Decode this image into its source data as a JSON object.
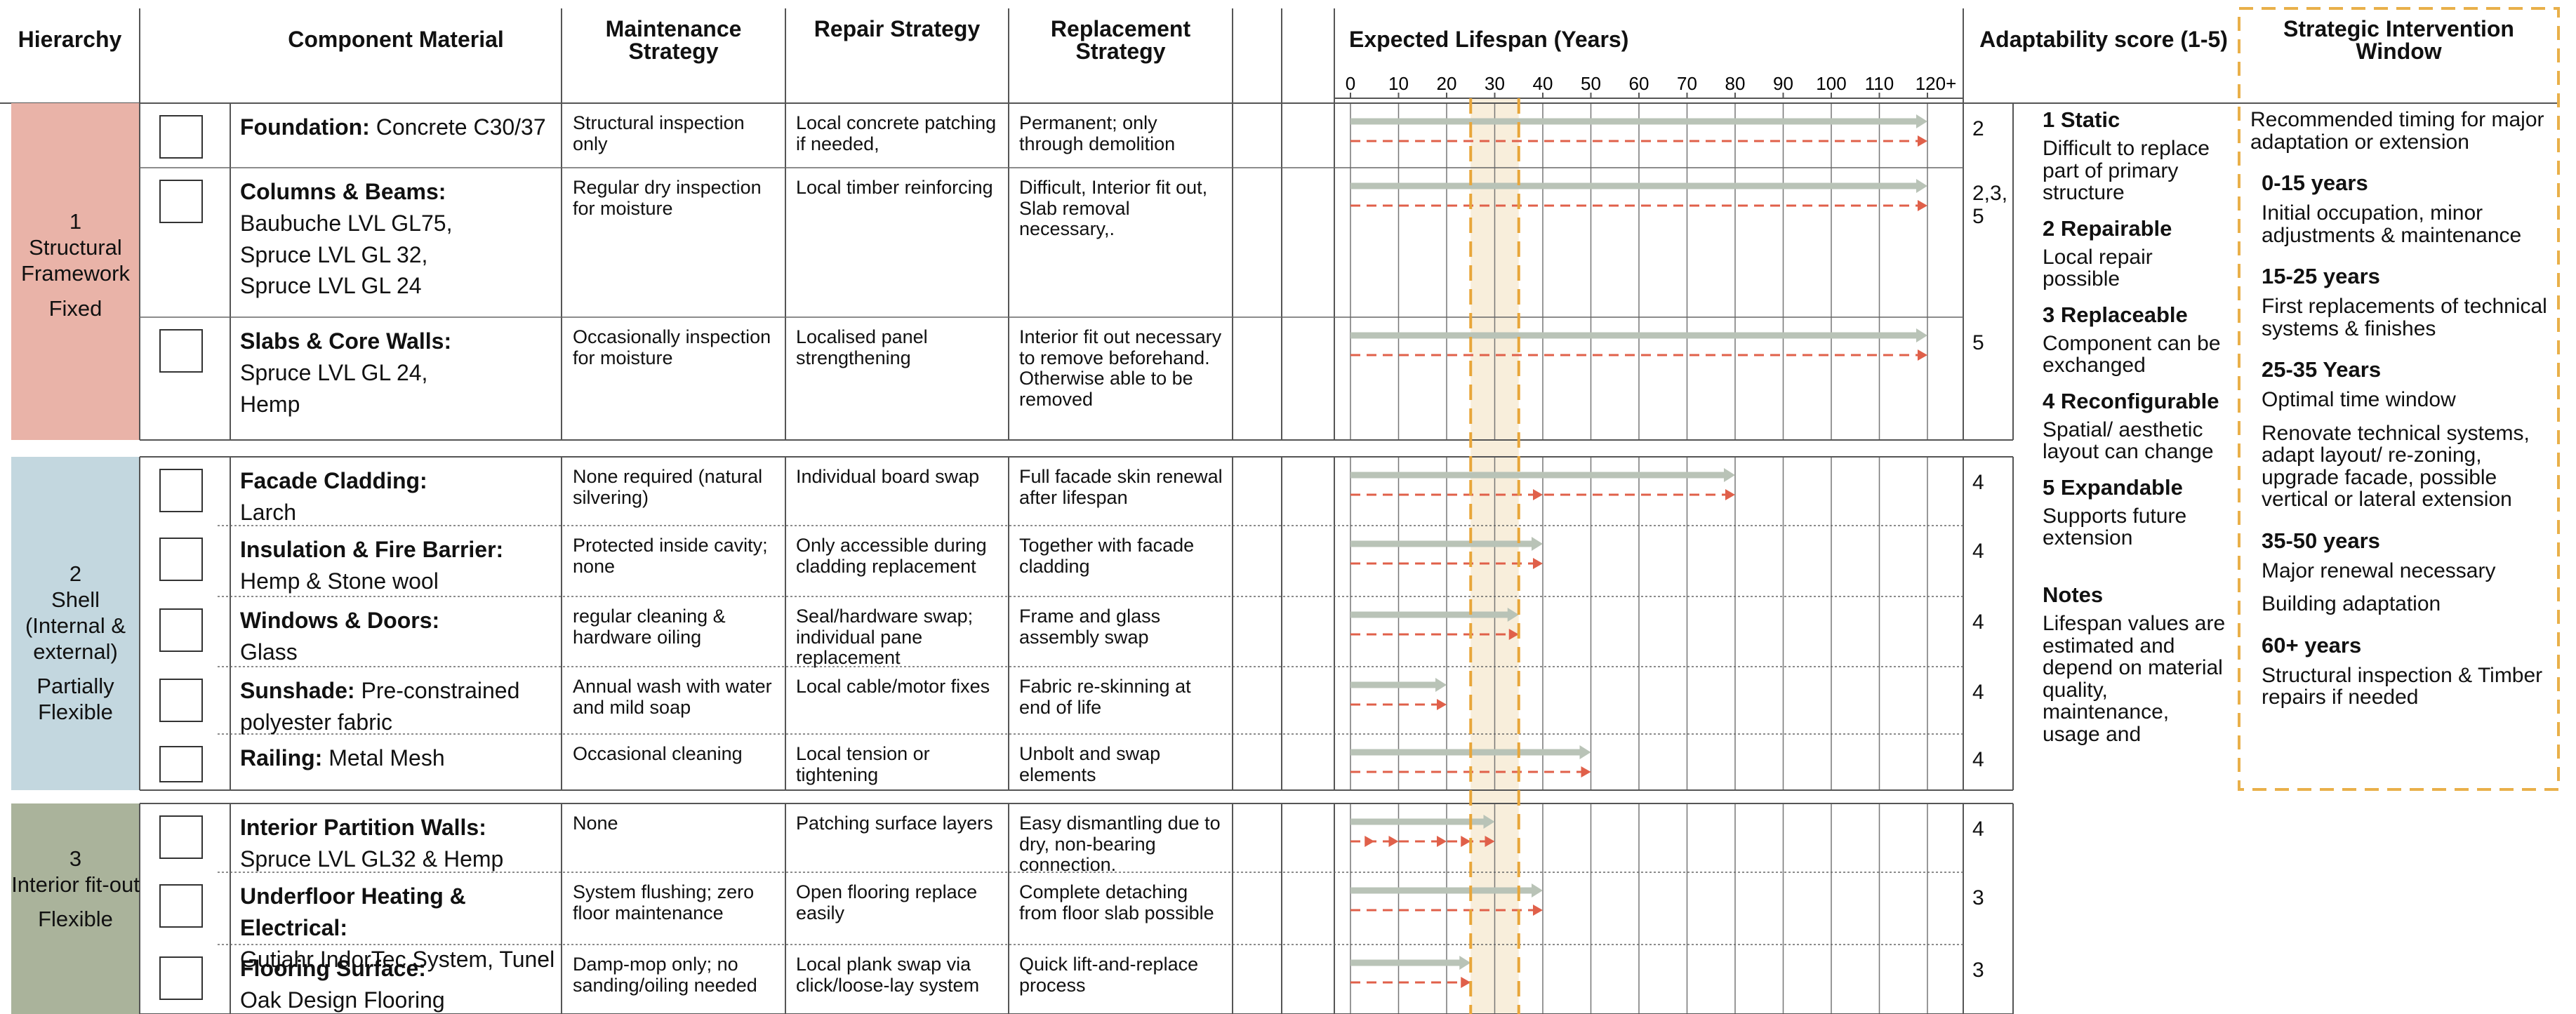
{
  "headers": {
    "hierarchy": "Hierarchy",
    "component": "Component Material",
    "maintenance": "Maintenance Strategy",
    "repair": "Repair Strategy",
    "replacement": "Replacement Strategy",
    "lifespan": "Expected Lifespan (Years)",
    "adaptability": "Adaptability score (1-5)",
    "window": "Strategic Intervention Window"
  },
  "lifespan_axis": {
    "lim": [
      0,
      120
    ],
    "ticks": [
      0,
      10,
      20,
      30,
      40,
      50,
      60,
      70,
      80,
      90,
      100,
      110,
      {
        "value": 120,
        "label": "120+"
      }
    ],
    "highlight": [
      25,
      35
    ]
  },
  "groups": [
    {
      "number": "1",
      "name": "Structural Framework",
      "flexibility": "Fixed",
      "color": "#e9b3a8",
      "rows": [
        {
          "name": "Foundation:",
          "material": "Concrete C30/37",
          "maintenance": "Structural inspection only",
          "repair": "Local concrete patching if needed,",
          "replacement": "Permanent; only through demolition",
          "lifespan": 120,
          "replacements": [
            120
          ],
          "score": 2
        },
        {
          "name": "Columns & Beams:",
          "material": [
            "Baubuche LVL GL75,",
            "Spruce LVL GL 32,",
            "Spruce LVL GL 24"
          ],
          "maintenance": "Regular dry inspection for moisture",
          "repair": "Local timber reinforcing",
          "replacement": "Difficult, Interior fit out, Slab removal necessary,.",
          "lifespan": 120,
          "replacements": [
            120
          ],
          "score": "2,3, 5"
        },
        {
          "name": "Slabs & Core Walls:",
          "material": [
            "Spruce LVL GL 24,",
            "Hemp"
          ],
          "maintenance": "Occasionally inspection for moisture",
          "repair": "Localised panel strengthening",
          "replacement": "Interior fit out necessary to remove beforehand. Otherwise able to be removed",
          "lifespan": 120,
          "replacements": [
            120
          ],
          "score": 5
        }
      ]
    },
    {
      "number": "2",
      "name": "Shell (Internal & external)",
      "flexibility": "Partially Flexible",
      "color": "#c3d7df",
      "rows": [
        {
          "name": "Facade Cladding:",
          "material": [
            "Larch"
          ],
          "maintenance": "None required (natural silvering)",
          "repair": "Individual board swap",
          "replacement": "Full facade skin renewal after lifespan",
          "lifespan": 80,
          "replacements": [
            40,
            80
          ],
          "score": 4
        },
        {
          "name": "Insulation & Fire Barrier:",
          "material": [
            "Hemp & Stone wool"
          ],
          "maintenance": "Protected inside cavity; none",
          "repair": "Only accessible during cladding replacement",
          "replacement": "Together with facade cladding",
          "lifespan": 40,
          "replacements": [
            40
          ],
          "score": 4
        },
        {
          "name": "Windows & Doors:",
          "material": [
            "Glass"
          ],
          "maintenance": "regular cleaning & hardware oiling",
          "repair": "Seal/hardware swap; individual pane replacement",
          "replacement": "Frame and glass assembly swap",
          "lifespan": 35,
          "replacements": [
            35
          ],
          "score": 4
        },
        {
          "name": "Sunshade:",
          "material": "Pre-constrained polyester fabric",
          "maintenance": "Annual wash with water and mild soap",
          "repair": "Local cable/motor fixes",
          "replacement": "Fabric re-skinning at end of life",
          "lifespan": 20,
          "replacements": [
            20
          ],
          "score": 4
        },
        {
          "name": "Railing:",
          "material": "Metal Mesh",
          "maintenance": "Occasional cleaning",
          "repair": "Local tension or tightening",
          "replacement": "Unbolt and swap elements",
          "lifespan": 50,
          "replacements": [
            50
          ],
          "score": 4
        }
      ]
    },
    {
      "number": "3",
      "name": "Interior fit-out",
      "flexibility": "Flexible",
      "color": "#aab39b",
      "rows": [
        {
          "name": "Interior Partition Walls:",
          "material": [
            "Spruce LVL GL32 & Hemp"
          ],
          "maintenance": "None",
          "repair": "Patching surface layers",
          "replacement": "Easy dismantling due to dry, non-bearing connection.",
          "lifespan": 30,
          "replacements": [
            5,
            10,
            20,
            25,
            30
          ],
          "score": 4
        },
        {
          "name": "Underfloor Heating & Electrical:",
          "material": [
            "Gutjahr IndorTec System, Tunel"
          ],
          "maintenance": "System flushing; zero floor maintenance",
          "repair": "Open flooring replace easily",
          "replacement": "Complete detaching from floor slab possible",
          "lifespan": 40,
          "replacements": [
            40
          ],
          "score": 3
        },
        {
          "name": "Flooring Surface:",
          "material": [
            "Oak Design Flooring"
          ],
          "maintenance": "Damp-mop only; no sanding/oiling needed",
          "repair": "Local plank swap via click/loose-lay system",
          "replacement": "Quick lift-and-replace process",
          "lifespan": 25,
          "replacements": [
            25
          ],
          "score": 3
        }
      ]
    }
  ],
  "adaptability_legend": [
    {
      "title": "1 Static",
      "text": "Difficult to replace part of primary structure"
    },
    {
      "title": "2 Repairable",
      "text": "Local repair possible"
    },
    {
      "title": "3 Replaceable",
      "text": "Component can be exchanged"
    },
    {
      "title": "4 Reconfigurable",
      "text": "Spatial/ aesthetic layout can change"
    },
    {
      "title": "5 Expandable",
      "text": "Supports future extension"
    }
  ],
  "notes": {
    "title": "Notes",
    "text": "Lifespan values are estimated and depend on material quality, maintenance, usage and"
  },
  "intervention_window": {
    "intro": "Recommended timing for major adaptation or extension",
    "periods": [
      {
        "period": "0-15 years",
        "texts": [
          "Initial occupation, minor adjustments & maintenance"
        ]
      },
      {
        "period": "15-25 years",
        "texts": [
          "First replacements of technical systems & finishes"
        ]
      },
      {
        "period": "25-35 Years",
        "texts": [
          "Optimal time window",
          "Renovate technical systems, adapt layout/ re-zoning, upgrade facade, possible vertical or lateral extension"
        ]
      },
      {
        "period": "35-50 years",
        "texts": [
          "Major renewal necessary",
          "Building adaptation"
        ]
      },
      {
        "period": "60+ years",
        "texts": [
          "Structural inspection & Timber repairs if needed"
        ]
      }
    ]
  }
}
